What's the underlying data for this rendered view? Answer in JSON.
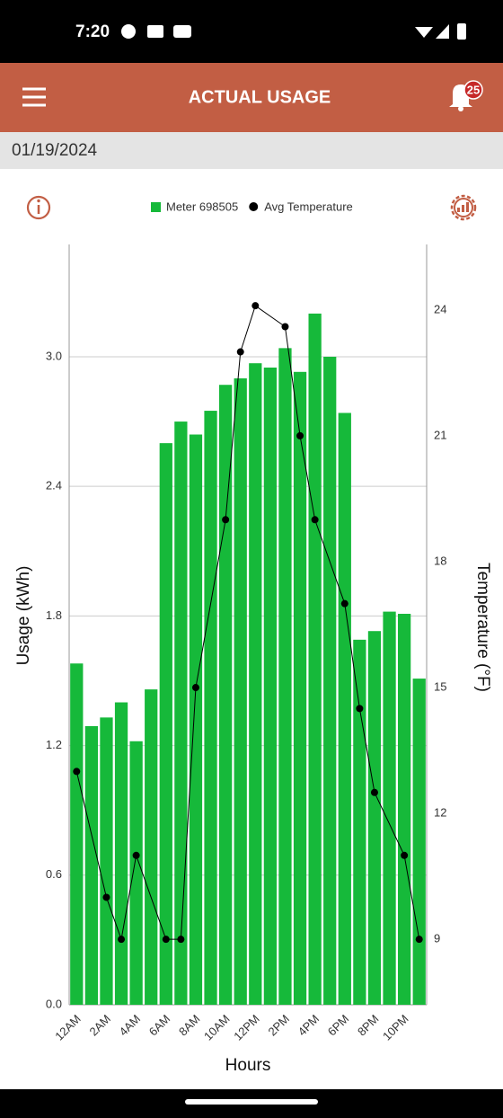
{
  "status_bar": {
    "time": "7:20"
  },
  "header": {
    "title": "ACTUAL USAGE",
    "notification_count": "25"
  },
  "date": "01/19/2024",
  "chart_data": {
    "type": "bar",
    "categories": [
      "12AM",
      null,
      "2AM",
      null,
      "4AM",
      null,
      "6AM",
      null,
      "8AM",
      null,
      "10AM",
      null,
      "12PM",
      null,
      "2PM",
      null,
      "4PM",
      null,
      "6PM",
      null,
      "8PM",
      null,
      "10PM",
      null
    ],
    "series": [
      {
        "name": "Meter 698505",
        "type": "bar",
        "color": "#16b93a",
        "values": [
          1.58,
          1.29,
          1.33,
          1.4,
          1.22,
          1.46,
          2.6,
          2.7,
          2.64,
          2.75,
          2.87,
          2.9,
          2.97,
          2.95,
          3.04,
          2.93,
          3.2,
          3.0,
          2.74,
          1.69,
          1.73,
          1.82,
          1.81,
          1.51
        ]
      },
      {
        "name": "Avg Temperature",
        "type": "line",
        "axis": "y2",
        "color": "#000000",
        "span_gaps": true,
        "values": [
          13,
          null,
          10,
          9,
          11,
          null,
          9,
          9,
          15,
          null,
          19,
          23,
          24.1,
          null,
          23.6,
          21,
          19,
          null,
          17,
          14.5,
          12.5,
          null,
          11,
          9
        ]
      }
    ],
    "ylabel": "Usage (kWh)",
    "y2label": "Temperature (°F)",
    "xlabel": "Hours",
    "ylim": [
      0,
      3.52
    ],
    "yticks": [
      {
        "value": 0,
        "label": "0.0"
      },
      0.6,
      1.2,
      1.8,
      2.4,
      {
        "value": 3,
        "label": "3.0"
      }
    ],
    "y2lim": [
      7.44,
      25.56
    ],
    "y2ticks": [
      9,
      12,
      15,
      18,
      21,
      24
    ],
    "grid": true,
    "legend": "top"
  }
}
